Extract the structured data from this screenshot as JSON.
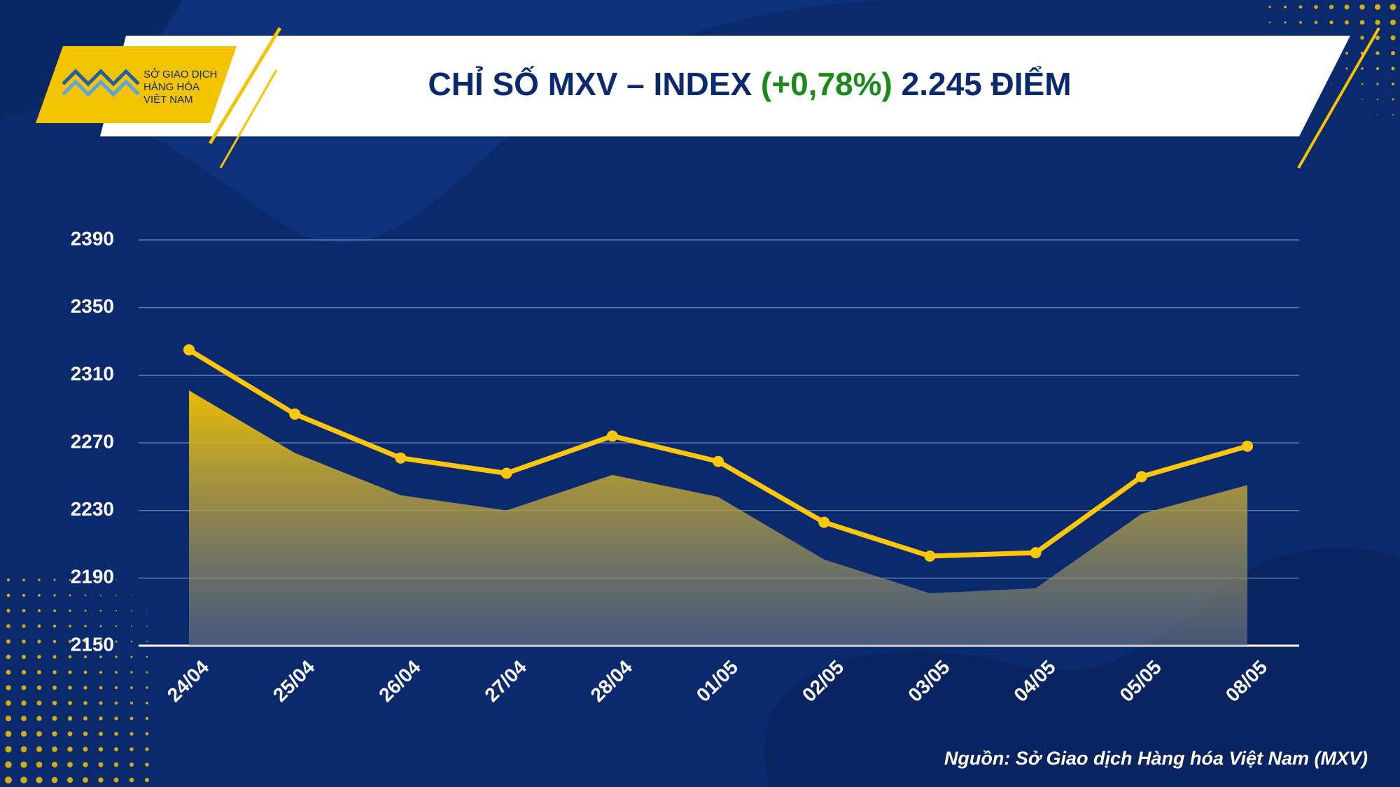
{
  "logo": {
    "lines": [
      "SỞ GIAO DỊCH",
      "HÀNG HÓA",
      "VIỆT NAM"
    ]
  },
  "chart_data": {
    "type": "line",
    "title": [
      {
        "text": "CHỈ SỐ MXV – INDEX ",
        "color": "#0b2a6e"
      },
      {
        "text": "(+0,78%)",
        "color": "#1a8a1a"
      },
      {
        "text": " 2.245 ĐIỂM",
        "color": "#0b2a6e"
      }
    ],
    "categories": [
      "24/04",
      "25/04",
      "26/04",
      "27/04",
      "28/04",
      "01/05",
      "02/05",
      "03/05",
      "04/05",
      "05/05",
      "08/05"
    ],
    "series": [
      {
        "type": "area",
        "color": "#f5c400",
        "values": [
          2301,
          2264,
          2239,
          2230,
          2251,
          2238,
          2201,
          2181,
          2184,
          2228,
          2245
        ]
      },
      {
        "type": "line",
        "color": "#fcc60a",
        "values": [
          2325,
          2287,
          2261,
          2252,
          2274,
          2259,
          2223,
          2203,
          2205,
          2250,
          2268
        ]
      }
    ],
    "ylim": [
      2150,
      2390
    ],
    "yticks": [
      2150,
      2190,
      2230,
      2270,
      2310,
      2350,
      2390
    ],
    "grid": true
  },
  "source": "Nguồn: Sở Giao dịch Hàng hóa Việt Nam (MXV)"
}
